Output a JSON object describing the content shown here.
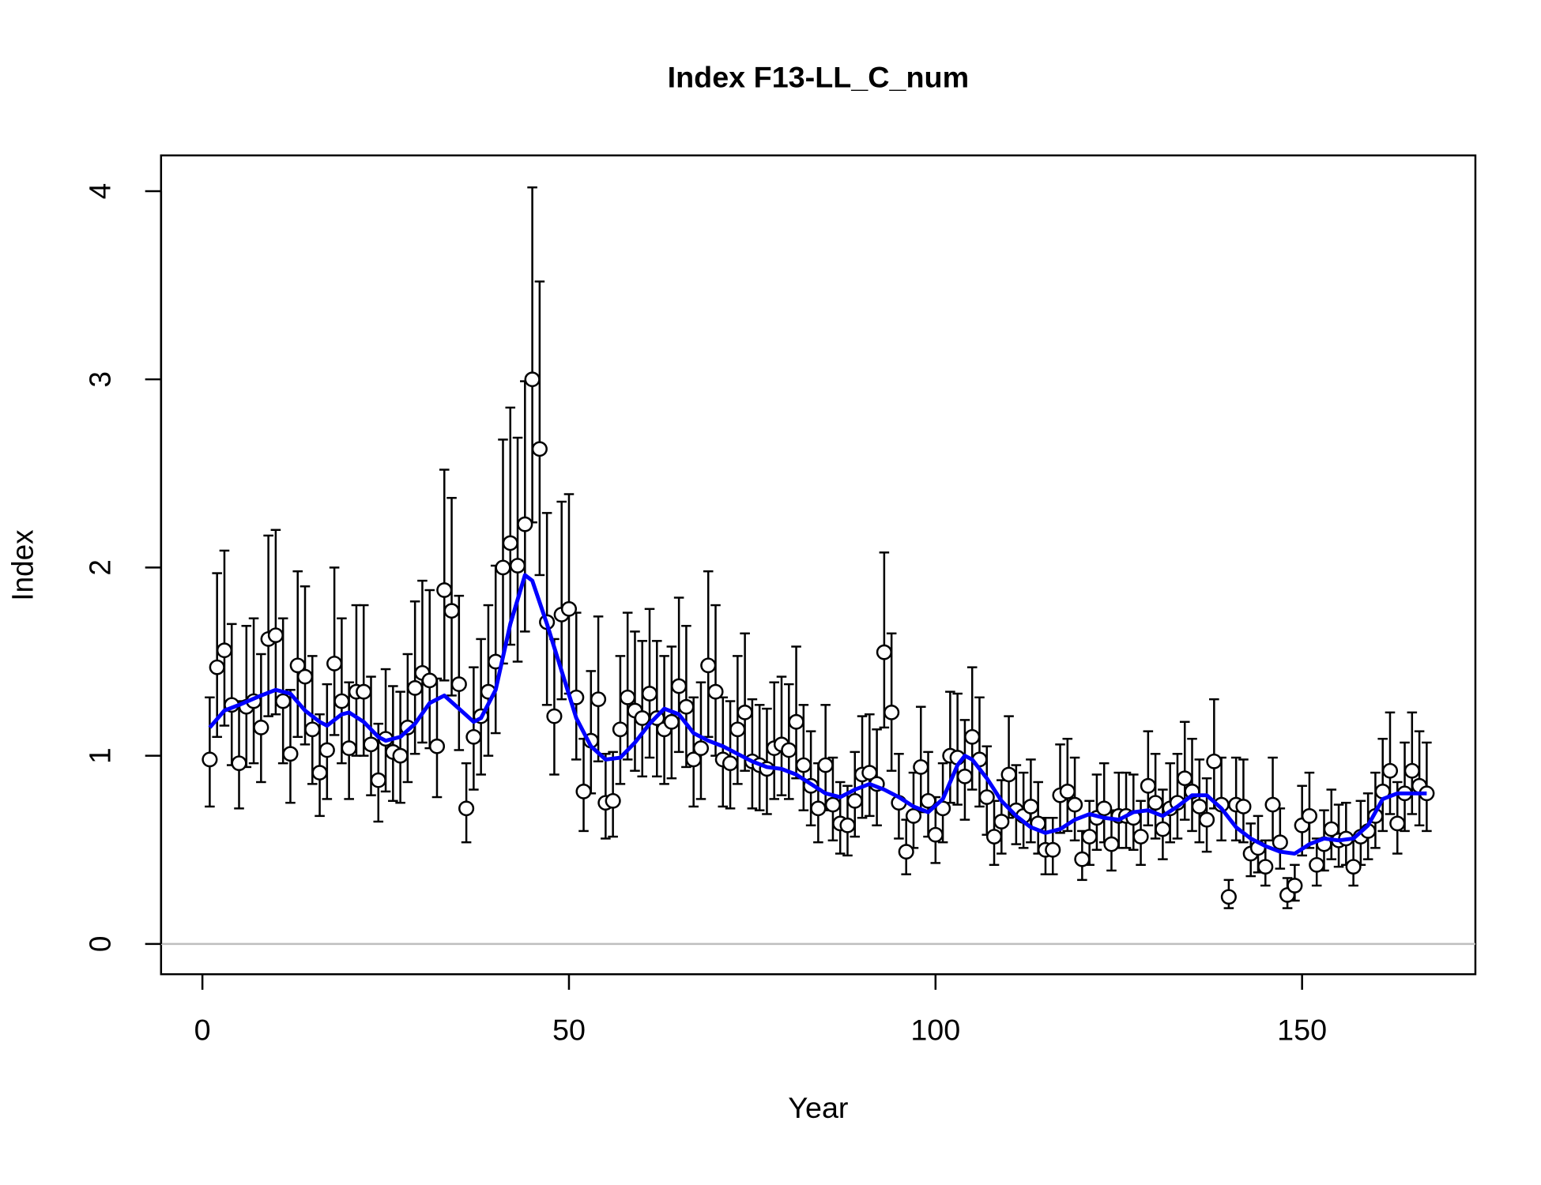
{
  "chart_data": {
    "type": "scatter",
    "title": "Index F13-LL_C_num",
    "x_label": "Year",
    "y_label": "Index",
    "xlim": [
      -5.64,
      173.64
    ],
    "ylim": [
      -0.161,
      4.19
    ],
    "xticks": [
      0,
      50,
      100,
      150
    ],
    "yticks": [
      0,
      1,
      2,
      3,
      4
    ],
    "hline": 0,
    "hline_color": "#bebebe",
    "point_color": "#000000",
    "point_fill": "#ffffff",
    "x": [
      1,
      2,
      3,
      4,
      5,
      6,
      7,
      8,
      9,
      10,
      11,
      12,
      13,
      14,
      15,
      16,
      17,
      18,
      19,
      20,
      21,
      22,
      23,
      24,
      25,
      26,
      27,
      28,
      29,
      30,
      31,
      32,
      33,
      34,
      35,
      36,
      37,
      38,
      39,
      40,
      41,
      42,
      43,
      44,
      45,
      46,
      47,
      48,
      49,
      50,
      51,
      52,
      53,
      54,
      55,
      56,
      57,
      58,
      59,
      60,
      61,
      62,
      63,
      64,
      65,
      66,
      67,
      68,
      69,
      70,
      71,
      72,
      73,
      74,
      75,
      76,
      77,
      78,
      79,
      80,
      81,
      82,
      83,
      84,
      85,
      86,
      87,
      88,
      89,
      90,
      91,
      92,
      93,
      94,
      95,
      96,
      97,
      98,
      99,
      100,
      101,
      102,
      103,
      104,
      105,
      106,
      107,
      108,
      109,
      110,
      111,
      112,
      113,
      114,
      115,
      116,
      117,
      118,
      119,
      120,
      121,
      122,
      123,
      124,
      125,
      126,
      127,
      128,
      129,
      130,
      131,
      132,
      133,
      134,
      135,
      136,
      137,
      138,
      139,
      140,
      141,
      142,
      143,
      144,
      145,
      146,
      147,
      148,
      149,
      150,
      151,
      152,
      153,
      154,
      155,
      156,
      157,
      158,
      159,
      160,
      161,
      162,
      163,
      164,
      165,
      166,
      167
    ],
    "values": [
      0.98,
      1.47,
      1.56,
      1.27,
      0.96,
      1.26,
      1.29,
      1.15,
      1.62,
      1.64,
      1.29,
      1.01,
      1.48,
      1.42,
      1.14,
      0.91,
      1.03,
      1.49,
      1.29,
      1.04,
      1.34,
      1.34,
      1.06,
      0.87,
      1.09,
      1.02,
      1.0,
      1.15,
      1.36,
      1.44,
      1.4,
      1.05,
      1.88,
      1.77,
      1.38,
      0.72,
      1.1,
      1.21,
      1.34,
      1.5,
      2.0,
      2.13,
      2.01,
      2.23,
      3.0,
      2.63,
      1.71,
      1.21,
      1.75,
      1.78,
      1.31,
      0.81,
      1.08,
      1.3,
      0.75,
      0.76,
      1.14,
      1.31,
      1.24,
      1.2,
      1.33,
      1.2,
      1.14,
      1.18,
      1.37,
      1.26,
      0.98,
      1.04,
      1.48,
      1.34,
      0.98,
      0.96,
      1.14,
      1.23,
      0.97,
      0.95,
      0.93,
      1.04,
      1.06,
      1.03,
      1.18,
      0.95,
      0.84,
      0.72,
      0.95,
      0.74,
      0.64,
      0.63,
      0.76,
      0.9,
      0.91,
      0.85,
      1.55,
      1.23,
      0.75,
      0.49,
      0.68,
      0.94,
      0.76,
      0.58,
      0.72,
      1.0,
      0.99,
      0.89,
      1.1,
      0.98,
      0.78,
      0.57,
      0.65,
      0.9,
      0.71,
      0.68,
      0.73,
      0.64,
      0.5,
      0.5,
      0.79,
      0.81,
      0.74,
      0.45,
      0.57,
      0.67,
      0.72,
      0.53,
      0.68,
      0.68,
      0.67,
      0.57,
      0.84,
      0.75,
      0.61,
      0.72,
      0.75,
      0.88,
      0.81,
      0.73,
      0.66,
      0.97,
      0.74,
      0.25,
      0.74,
      0.73,
      0.48,
      0.51,
      0.41,
      0.74,
      0.54,
      0.26,
      0.31,
      0.63,
      0.68,
      0.42,
      0.53,
      0.61,
      0.55,
      0.56,
      0.41,
      0.57,
      0.6,
      0.68,
      0.81,
      0.92,
      0.64,
      0.8,
      0.92,
      0.84,
      0.8
    ],
    "lower": [
      0.73,
      1.1,
      1.16,
      0.95,
      0.72,
      0.94,
      0.96,
      0.86,
      1.21,
      1.22,
      0.96,
      0.75,
      1.1,
      1.06,
      0.85,
      0.68,
      0.77,
      1.11,
      0.96,
      0.77,
      1.0,
      1.0,
      0.79,
      0.65,
      0.81,
      0.76,
      0.75,
      0.86,
      1.01,
      1.07,
      1.04,
      0.78,
      1.4,
      1.32,
      1.03,
      0.54,
      0.82,
      0.9,
      1.0,
      1.12,
      1.49,
      1.59,
      1.5,
      1.66,
      2.24,
      1.96,
      1.27,
      0.9,
      1.3,
      1.33,
      0.98,
      0.6,
      0.8,
      0.97,
      0.56,
      0.57,
      0.85,
      0.98,
      0.92,
      0.89,
      0.99,
      0.89,
      0.85,
      0.88,
      1.02,
      0.94,
      0.73,
      0.77,
      1.1,
      1.0,
      0.73,
      0.72,
      0.85,
      0.92,
      0.72,
      0.71,
      0.69,
      0.77,
      0.79,
      0.77,
      0.88,
      0.71,
      0.63,
      0.54,
      0.71,
      0.55,
      0.48,
      0.47,
      0.57,
      0.67,
      0.68,
      0.63,
      1.15,
      0.92,
      0.56,
      0.37,
      0.51,
      0.7,
      0.57,
      0.43,
      0.54,
      0.75,
      0.74,
      0.66,
      0.82,
      0.73,
      0.58,
      0.42,
      0.48,
      0.67,
      0.53,
      0.51,
      0.54,
      0.48,
      0.37,
      0.37,
      0.59,
      0.6,
      0.55,
      0.34,
      0.42,
      0.5,
      0.54,
      0.39,
      0.51,
      0.51,
      0.5,
      0.42,
      0.63,
      0.56,
      0.45,
      0.54,
      0.56,
      0.66,
      0.6,
      0.54,
      0.49,
      0.72,
      0.55,
      0.19,
      0.55,
      0.54,
      0.36,
      0.38,
      0.31,
      0.55,
      0.4,
      0.19,
      0.23,
      0.47,
      0.51,
      0.31,
      0.39,
      0.45,
      0.41,
      0.42,
      0.31,
      0.42,
      0.45,
      0.51,
      0.6,
      0.69,
      0.48,
      0.6,
      0.69,
      0.63,
      0.6
    ],
    "upper": [
      1.31,
      1.97,
      2.09,
      1.7,
      1.29,
      1.69,
      1.73,
      1.54,
      2.17,
      2.2,
      1.73,
      1.35,
      1.98,
      1.9,
      1.53,
      1.22,
      1.38,
      2.0,
      1.73,
      1.39,
      1.8,
      1.8,
      1.42,
      1.17,
      1.46,
      1.37,
      1.34,
      1.54,
      1.82,
      1.93,
      1.88,
      1.41,
      2.52,
      2.37,
      1.85,
      0.96,
      1.47,
      1.62,
      1.8,
      2.01,
      2.68,
      2.85,
      2.69,
      2.99,
      4.02,
      3.52,
      2.29,
      1.62,
      2.35,
      2.39,
      1.76,
      1.09,
      1.45,
      1.74,
      1.01,
      1.02,
      1.53,
      1.76,
      1.66,
      1.61,
      1.78,
      1.61,
      1.53,
      1.58,
      1.84,
      1.69,
      1.31,
      1.39,
      1.98,
      1.8,
      1.31,
      1.29,
      1.53,
      1.65,
      1.3,
      1.27,
      1.25,
      1.39,
      1.42,
      1.38,
      1.58,
      1.27,
      1.13,
      0.96,
      1.27,
      0.99,
      0.86,
      0.84,
      1.02,
      1.21,
      1.22,
      1.14,
      2.08,
      1.65,
      1.01,
      0.66,
      0.91,
      1.26,
      1.02,
      0.78,
      0.96,
      1.34,
      1.33,
      1.19,
      1.47,
      1.31,
      1.05,
      0.76,
      0.87,
      1.21,
      0.95,
      0.91,
      0.98,
      0.86,
      0.67,
      0.67,
      1.06,
      1.09,
      0.99,
      0.6,
      0.76,
      0.9,
      0.96,
      0.71,
      0.91,
      0.91,
      0.9,
      0.76,
      1.13,
      1.01,
      0.82,
      0.96,
      1.01,
      1.18,
      1.09,
      0.98,
      0.88,
      1.3,
      0.99,
      0.34,
      0.99,
      0.98,
      0.64,
      0.68,
      0.55,
      0.99,
      0.72,
      0.35,
      0.42,
      0.84,
      0.91,
      0.56,
      0.71,
      0.82,
      0.74,
      0.75,
      0.55,
      0.76,
      0.8,
      0.91,
      1.09,
      1.23,
      0.86,
      1.07,
      1.23,
      1.13,
      1.07
    ],
    "fit": {
      "color": "#0000ff",
      "x": [
        1,
        3,
        5,
        8,
        10,
        12,
        14,
        16,
        17,
        19,
        20,
        22,
        24,
        25,
        27,
        29,
        31,
        33,
        35,
        37,
        38,
        40,
        42,
        44,
        45,
        47,
        49,
        51,
        53,
        55,
        57,
        59,
        61,
        63,
        65,
        67,
        69,
        71,
        73,
        75,
        77,
        79,
        81,
        83,
        85,
        87,
        89,
        91,
        93,
        95,
        97,
        99,
        101,
        103,
        104,
        105,
        107,
        109,
        111,
        113,
        115,
        117,
        119,
        121,
        123,
        125,
        127,
        129,
        131,
        133,
        135,
        137,
        139,
        141,
        143,
        145,
        147,
        149,
        151,
        153,
        155,
        157,
        159,
        161,
        163,
        165,
        167
      ],
      "values": [
        1.15,
        1.24,
        1.27,
        1.32,
        1.35,
        1.33,
        1.24,
        1.18,
        1.16,
        1.22,
        1.23,
        1.18,
        1.1,
        1.08,
        1.1,
        1.17,
        1.28,
        1.32,
        1.25,
        1.18,
        1.2,
        1.35,
        1.7,
        1.96,
        1.93,
        1.7,
        1.45,
        1.2,
        1.05,
        0.98,
        0.99,
        1.07,
        1.17,
        1.25,
        1.22,
        1.12,
        1.08,
        1.05,
        1.01,
        0.97,
        0.94,
        0.93,
        0.9,
        0.85,
        0.8,
        0.78,
        0.82,
        0.85,
        0.82,
        0.78,
        0.73,
        0.7,
        0.77,
        0.95,
        1.0,
        0.98,
        0.88,
        0.76,
        0.68,
        0.62,
        0.59,
        0.61,
        0.66,
        0.69,
        0.67,
        0.66,
        0.7,
        0.71,
        0.68,
        0.73,
        0.79,
        0.79,
        0.72,
        0.62,
        0.56,
        0.52,
        0.49,
        0.48,
        0.53,
        0.56,
        0.55,
        0.56,
        0.63,
        0.77,
        0.8,
        0.8,
        0.8
      ]
    }
  }
}
